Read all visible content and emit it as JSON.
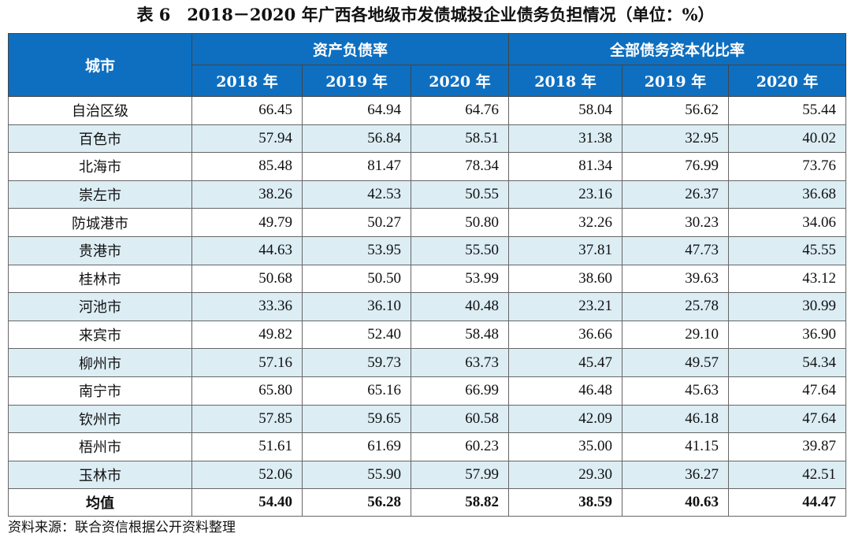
{
  "title": "表 6　2018－2020 年广西各地级市发债城投企业债务负担情况（单位：%）",
  "header": {
    "city": "城市",
    "group1": "资产负债率",
    "group2": "全部债务资本化比率",
    "years": [
      "2018 年",
      "2019 年",
      "2020 年",
      "2018 年",
      "2019 年",
      "2020 年"
    ]
  },
  "rows": [
    {
      "city": "自治区级",
      "values": [
        "66.45",
        "64.94",
        "64.76",
        "58.04",
        "56.62",
        "55.44"
      ]
    },
    {
      "city": "百色市",
      "values": [
        "57.94",
        "56.84",
        "58.51",
        "31.38",
        "32.95",
        "40.02"
      ]
    },
    {
      "city": "北海市",
      "values": [
        "85.48",
        "81.47",
        "78.34",
        "81.34",
        "76.99",
        "73.76"
      ]
    },
    {
      "city": "崇左市",
      "values": [
        "38.26",
        "42.53",
        "50.55",
        "23.16",
        "26.37",
        "36.68"
      ]
    },
    {
      "city": "防城港市",
      "values": [
        "49.79",
        "50.27",
        "50.80",
        "32.26",
        "30.23",
        "34.06"
      ]
    },
    {
      "city": "贵港市",
      "values": [
        "44.63",
        "53.95",
        "55.50",
        "37.81",
        "47.73",
        "45.55"
      ]
    },
    {
      "city": "桂林市",
      "values": [
        "50.68",
        "50.50",
        "53.99",
        "38.60",
        "39.63",
        "43.12"
      ]
    },
    {
      "city": "河池市",
      "values": [
        "33.36",
        "36.10",
        "40.48",
        "23.21",
        "25.78",
        "30.99"
      ]
    },
    {
      "city": "来宾市",
      "values": [
        "49.82",
        "52.40",
        "58.48",
        "36.66",
        "29.10",
        "36.90"
      ]
    },
    {
      "city": "柳州市",
      "values": [
        "57.16",
        "59.73",
        "63.73",
        "45.47",
        "49.57",
        "54.34"
      ]
    },
    {
      "city": "南宁市",
      "values": [
        "65.80",
        "65.16",
        "66.99",
        "46.48",
        "45.63",
        "47.64"
      ]
    },
    {
      "city": "钦州市",
      "values": [
        "57.85",
        "59.65",
        "60.58",
        "42.09",
        "46.18",
        "47.64"
      ]
    },
    {
      "city": "梧州市",
      "values": [
        "51.61",
        "61.69",
        "60.23",
        "35.00",
        "41.15",
        "39.87"
      ]
    },
    {
      "city": "玉林市",
      "values": [
        "52.06",
        "55.90",
        "57.99",
        "29.30",
        "36.27",
        "42.51"
      ]
    }
  ],
  "average": {
    "city": "均值",
    "values": [
      "54.40",
      "56.28",
      "58.82",
      "38.59",
      "40.63",
      "44.47"
    ]
  },
  "source": "资料来源：联合资信根据公开资料整理",
  "colors": {
    "header_bg": "#0e6fc0",
    "alt_row_bg": "#dcedf4"
  }
}
